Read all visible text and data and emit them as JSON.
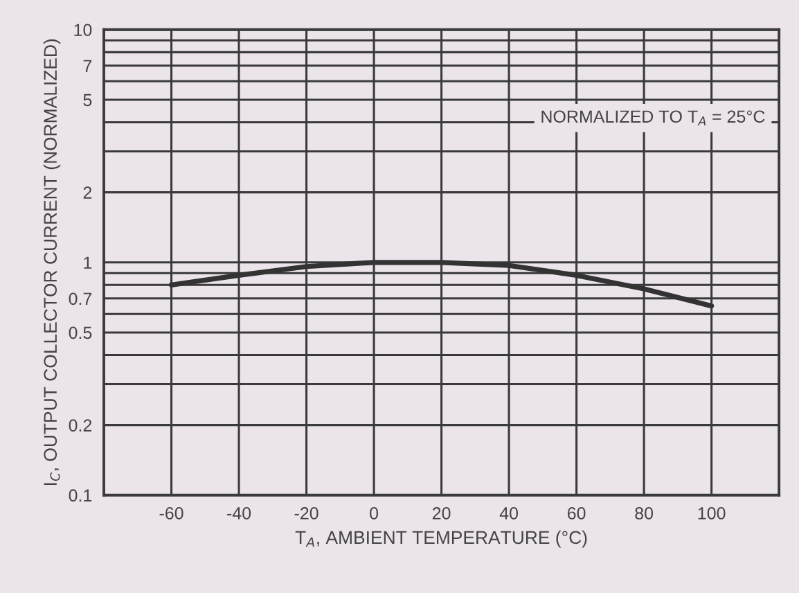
{
  "chart_data": {
    "type": "line",
    "xlabel": "T$_{A}$, AMBIENT TEMPERATURE (°C)",
    "ylabel": "I$_{C}$, OUTPUT COLLECTOR CURRENT (NORMALIZED)",
    "annotations": [
      "NORMALIZED TO T$_{A}$ = 25°C"
    ],
    "x": [
      -60,
      -40,
      -20,
      0,
      20,
      40,
      60,
      80,
      100
    ],
    "series": [
      {
        "color": "#333333",
        "values": [
          0.8,
          0.88,
          0.96,
          1.0,
          1.0,
          0.97,
          0.88,
          0.77,
          0.65
        ]
      }
    ],
    "log": "y",
    "xlim": [
      -80,
      120
    ],
    "xticks": [
      -60,
      -40,
      -20,
      0,
      20,
      40,
      60,
      80,
      100
    ],
    "ylim": [
      0.1,
      10
    ],
    "yticks": [
      0.1,
      0.2,
      {
        "value": 0.3,
        "label": null
      },
      {
        "value": 0.4,
        "label": null
      },
      0.5,
      {
        "value": 0.6,
        "label": null
      },
      0.7,
      {
        "value": 0.8,
        "label": null
      },
      {
        "value": 0.9,
        "label": null
      },
      1,
      2,
      {
        "value": 3,
        "label": null
      },
      {
        "value": 4,
        "label": null
      },
      5,
      {
        "value": 6,
        "label": null
      },
      7,
      {
        "value": 8,
        "label": null
      },
      {
        "value": 9,
        "label": null
      },
      10
    ],
    "grid": true
  }
}
